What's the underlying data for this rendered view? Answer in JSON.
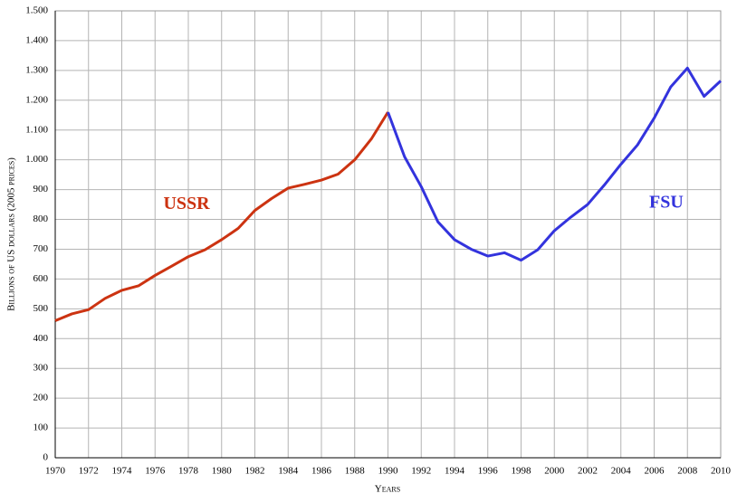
{
  "chart_data": {
    "type": "line",
    "x": [
      1970,
      1971,
      1972,
      1973,
      1974,
      1975,
      1976,
      1977,
      1978,
      1979,
      1980,
      1981,
      1982,
      1983,
      1984,
      1985,
      1986,
      1987,
      1988,
      1989,
      1990,
      1991,
      1992,
      1993,
      1994,
      1995,
      1996,
      1997,
      1998,
      1999,
      2000,
      2001,
      2002,
      2003,
      2004,
      2005,
      2006,
      2007,
      2008,
      2009,
      2010
    ],
    "series": [
      {
        "name": "USSR",
        "color": "#cc3311",
        "values": [
          460,
          483,
          497,
          535,
          562,
          577,
          612,
          643,
          675,
          698,
          732,
          770,
          830,
          870,
          905,
          918,
          932,
          952,
          1000,
          1070,
          1160,
          null,
          null,
          null,
          null,
          null,
          null,
          null,
          null,
          null,
          null,
          null,
          null,
          null,
          null,
          null,
          null,
          null,
          null,
          null,
          null
        ]
      },
      {
        "name": "FSU",
        "color": "#3333dd",
        "values": [
          null,
          null,
          null,
          null,
          null,
          null,
          null,
          null,
          null,
          null,
          null,
          null,
          null,
          null,
          null,
          null,
          null,
          null,
          null,
          null,
          1160,
          1010,
          910,
          792,
          732,
          700,
          677,
          688,
          663,
          698,
          762,
          808,
          850,
          915,
          985,
          1050,
          1140,
          1245,
          1308,
          1213,
          1265
        ]
      }
    ],
    "xlabel": "Years",
    "ylabel": "Billions of US dollars (2005 prices)",
    "xlim": [
      1970,
      2010
    ],
    "xticks": [
      1970,
      1972,
      1974,
      1976,
      1978,
      1980,
      1982,
      1984,
      1986,
      1988,
      1990,
      1992,
      1994,
      1996,
      1998,
      2000,
      2002,
      2004,
      2006,
      2008,
      2010
    ],
    "ylim": [
      0,
      1500
    ],
    "yticks": [
      0,
      100,
      200,
      300,
      400,
      500,
      600,
      700,
      800,
      900,
      {
        "value": 1000,
        "label": "1.000"
      },
      {
        "value": 1100,
        "label": "1.100"
      },
      {
        "value": 1200,
        "label": "1.200"
      },
      {
        "value": 1300,
        "label": "1.300"
      },
      {
        "value": 1400,
        "label": "1.400"
      },
      {
        "value": 1500,
        "label": "1.500"
      }
    ],
    "grid": true
  }
}
